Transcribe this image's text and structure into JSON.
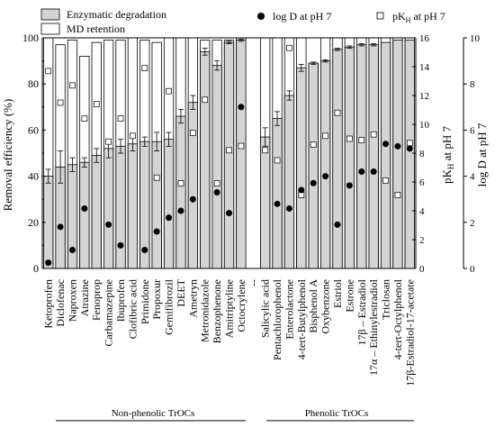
{
  "chart_data": {
    "type": "bar",
    "ylabel": "Removal efficiency (%)",
    "y2label_pk": "pK",
    "y2label_pk_sub": "H",
    "y2label_pk_suffix": " at pH 7",
    "y3label": "log D at pH 7",
    "ylim": [
      0,
      100
    ],
    "y2lim": [
      0,
      16
    ],
    "y3lim": [
      0,
      10
    ],
    "yticks": [
      "0",
      "20",
      "40",
      "60",
      "80",
      "100"
    ],
    "y2ticks": [
      "0",
      "2",
      "4",
      "6",
      "8",
      "10",
      "12",
      "14",
      "16"
    ],
    "y3ticks": [
      "0",
      "2",
      "4",
      "6",
      "8",
      "10"
    ],
    "legend": {
      "enzymatic": "Enzymatic degradation",
      "md": "MD retention",
      "logd": "log D at pH 7",
      "pkh_prefix": "pK",
      "pkh_sub": "H",
      "pkh_suffix": " at pH 7"
    },
    "group_labels": [
      "Non-phenolic TrOCs",
      "Phenolic TrOCs"
    ],
    "separator_label": "--",
    "colors": {
      "enzymatic": "#d4d4d4",
      "md": "#ffffff",
      "outline": "#000000"
    },
    "categories": [
      "Ketoprofen",
      "Diclofenac",
      "Naproxen",
      "Atrazine",
      "Fenoprop",
      "Carbamazepine",
      "Ibuprofen",
      "Clofibric acid",
      "Primidone",
      "Propoxur",
      "Gemifibrozil",
      "DEET",
      "Ametryn",
      "Metronidazole",
      "Benzophenone",
      "Amitriptyline",
      "Octocrylene",
      "Salicylic acid",
      "Pentachlorophenol",
      "Enterolactone",
      "4-tert-Butylphenol",
      "Bisphenol A",
      "Oxybenzone",
      "Estriol",
      "Estrone",
      "17β – Estradiol",
      "17α – Ethinylestradiol",
      "Triclosan",
      "4-tert-Octylphenol",
      "17β-Estradiol-17-acetate"
    ],
    "series": [
      {
        "name": "Enzymatic degradation",
        "values": [
          40,
          44,
          45,
          46,
          49,
          52,
          53,
          54,
          55,
          55,
          56,
          66,
          72,
          94,
          88,
          98,
          99,
          57,
          65,
          75,
          87,
          89,
          90,
          95,
          96,
          97,
          97,
          98,
          99,
          99
        ],
        "errors": [
          3,
          7,
          3,
          2,
          3,
          4,
          3,
          3,
          2,
          4,
          3,
          3,
          3,
          1.5,
          2,
          0.5,
          0.5,
          4,
          3,
          2,
          1.5,
          0.5,
          0.5,
          0.5,
          0.5,
          0.5,
          0.5,
          0,
          0,
          0
        ]
      },
      {
        "name": "MD retention",
        "values": [
          100,
          97,
          99,
          92,
          98,
          99,
          99,
          100,
          99,
          98,
          100,
          100,
          100,
          99,
          99,
          99,
          100,
          100,
          100,
          100,
          100,
          89,
          100,
          100,
          100,
          100,
          100,
          100,
          100,
          100
        ]
      },
      {
        "name": "log D at pH 7",
        "values": [
          0.25,
          1.8,
          0.8,
          2.6,
          null,
          1.9,
          1.0,
          null,
          0.8,
          1.6,
          2.2,
          2.5,
          3.0,
          null,
          3.3,
          2.4,
          7.0,
          null,
          2.8,
          2.6,
          3.4,
          3.7,
          4.0,
          1.9,
          3.6,
          4.2,
          4.2,
          5.4,
          5.3,
          5.2
        ]
      },
      {
        "name": "pKH at pH 7",
        "values": [
          13.7,
          11.5,
          12.7,
          10.4,
          11.4,
          8.8,
          10.4,
          9.2,
          13.9,
          6.3,
          12.3,
          5.9,
          9.4,
          11.7,
          5.9,
          8.2,
          8.5,
          8.2,
          7.5,
          15.3,
          5.1,
          8.6,
          9.2,
          10.8,
          9.0,
          8.9,
          9.3,
          6.1,
          5.1,
          8.7
        ]
      }
    ]
  }
}
